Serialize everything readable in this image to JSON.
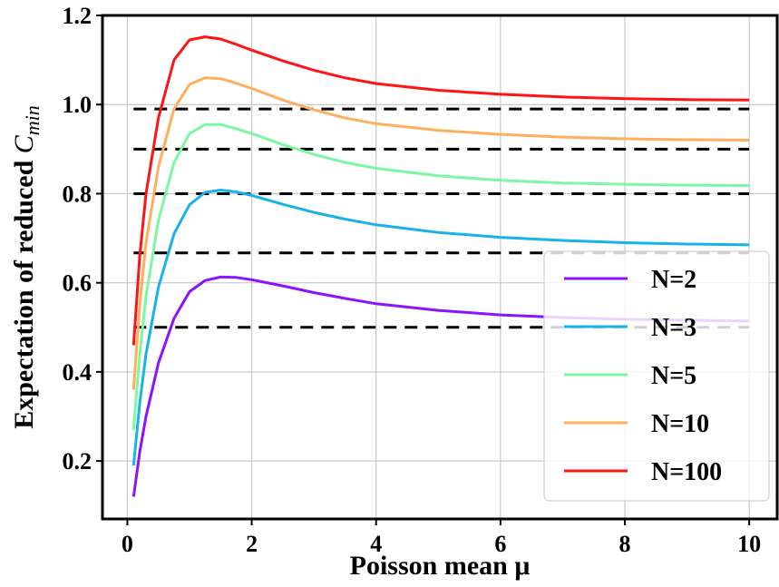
{
  "chart_data": {
    "type": "line",
    "xlabel": "Poisson mean μ",
    "ylabel": "Expectation of reduced C_min",
    "ylabel_main": "Expectation of reduced ",
    "ylabel_var": "C",
    "ylabel_sub": "min",
    "xlim": [
      -0.4,
      10.45
    ],
    "ylim": [
      0.07,
      1.2
    ],
    "xticks": [
      0,
      2,
      4,
      6,
      8,
      10
    ],
    "yticks": [
      0.2,
      0.4,
      0.6,
      0.8,
      1.0,
      1.2
    ],
    "xtick_labels": [
      "0",
      "2",
      "4",
      "6",
      "8",
      "10"
    ],
    "ytick_labels": [
      "0.2",
      "0.4",
      "0.6",
      "0.8",
      "1.0",
      "1.2"
    ],
    "grid": true,
    "legend_position": "lower-right",
    "x": [
      0.1,
      0.2,
      0.3,
      0.5,
      0.75,
      1.0,
      1.25,
      1.5,
      1.75,
      2.0,
      2.5,
      3.0,
      3.5,
      4.0,
      5.0,
      6.0,
      7.0,
      8.0,
      9.0,
      10.0
    ],
    "series": [
      {
        "name": "N=2",
        "color": "#8B12FF",
        "values": [
          0.12,
          0.22,
          0.3,
          0.42,
          0.52,
          0.58,
          0.605,
          0.613,
          0.612,
          0.607,
          0.593,
          0.578,
          0.565,
          0.553,
          0.538,
          0.528,
          0.522,
          0.518,
          0.516,
          0.514
        ]
      },
      {
        "name": "N=3",
        "color": "#17B3E8",
        "values": [
          0.19,
          0.33,
          0.44,
          0.59,
          0.71,
          0.775,
          0.803,
          0.808,
          0.804,
          0.796,
          0.776,
          0.758,
          0.743,
          0.73,
          0.713,
          0.702,
          0.695,
          0.69,
          0.687,
          0.685
        ]
      },
      {
        "name": "N=5",
        "color": "#7CF7A2",
        "values": [
          0.27,
          0.44,
          0.57,
          0.74,
          0.87,
          0.935,
          0.955,
          0.955,
          0.946,
          0.935,
          0.91,
          0.888,
          0.87,
          0.857,
          0.84,
          0.83,
          0.824,
          0.821,
          0.819,
          0.818
        ]
      },
      {
        "name": "N=10",
        "color": "#FFAE5E",
        "values": [
          0.36,
          0.55,
          0.69,
          0.86,
          0.99,
          1.045,
          1.06,
          1.058,
          1.048,
          1.036,
          1.01,
          0.988,
          0.97,
          0.957,
          0.942,
          0.933,
          0.927,
          0.923,
          0.921,
          0.92
        ]
      },
      {
        "name": "N=100",
        "color": "#FF1414",
        "values": [
          0.46,
          0.66,
          0.8,
          0.97,
          1.1,
          1.145,
          1.152,
          1.147,
          1.135,
          1.122,
          1.098,
          1.077,
          1.06,
          1.047,
          1.032,
          1.023,
          1.017,
          1.013,
          1.011,
          1.01
        ]
      }
    ],
    "reference_lines": [
      0.5,
      0.667,
      0.8,
      0.9,
      0.99
    ],
    "reference_color": "#000000"
  }
}
